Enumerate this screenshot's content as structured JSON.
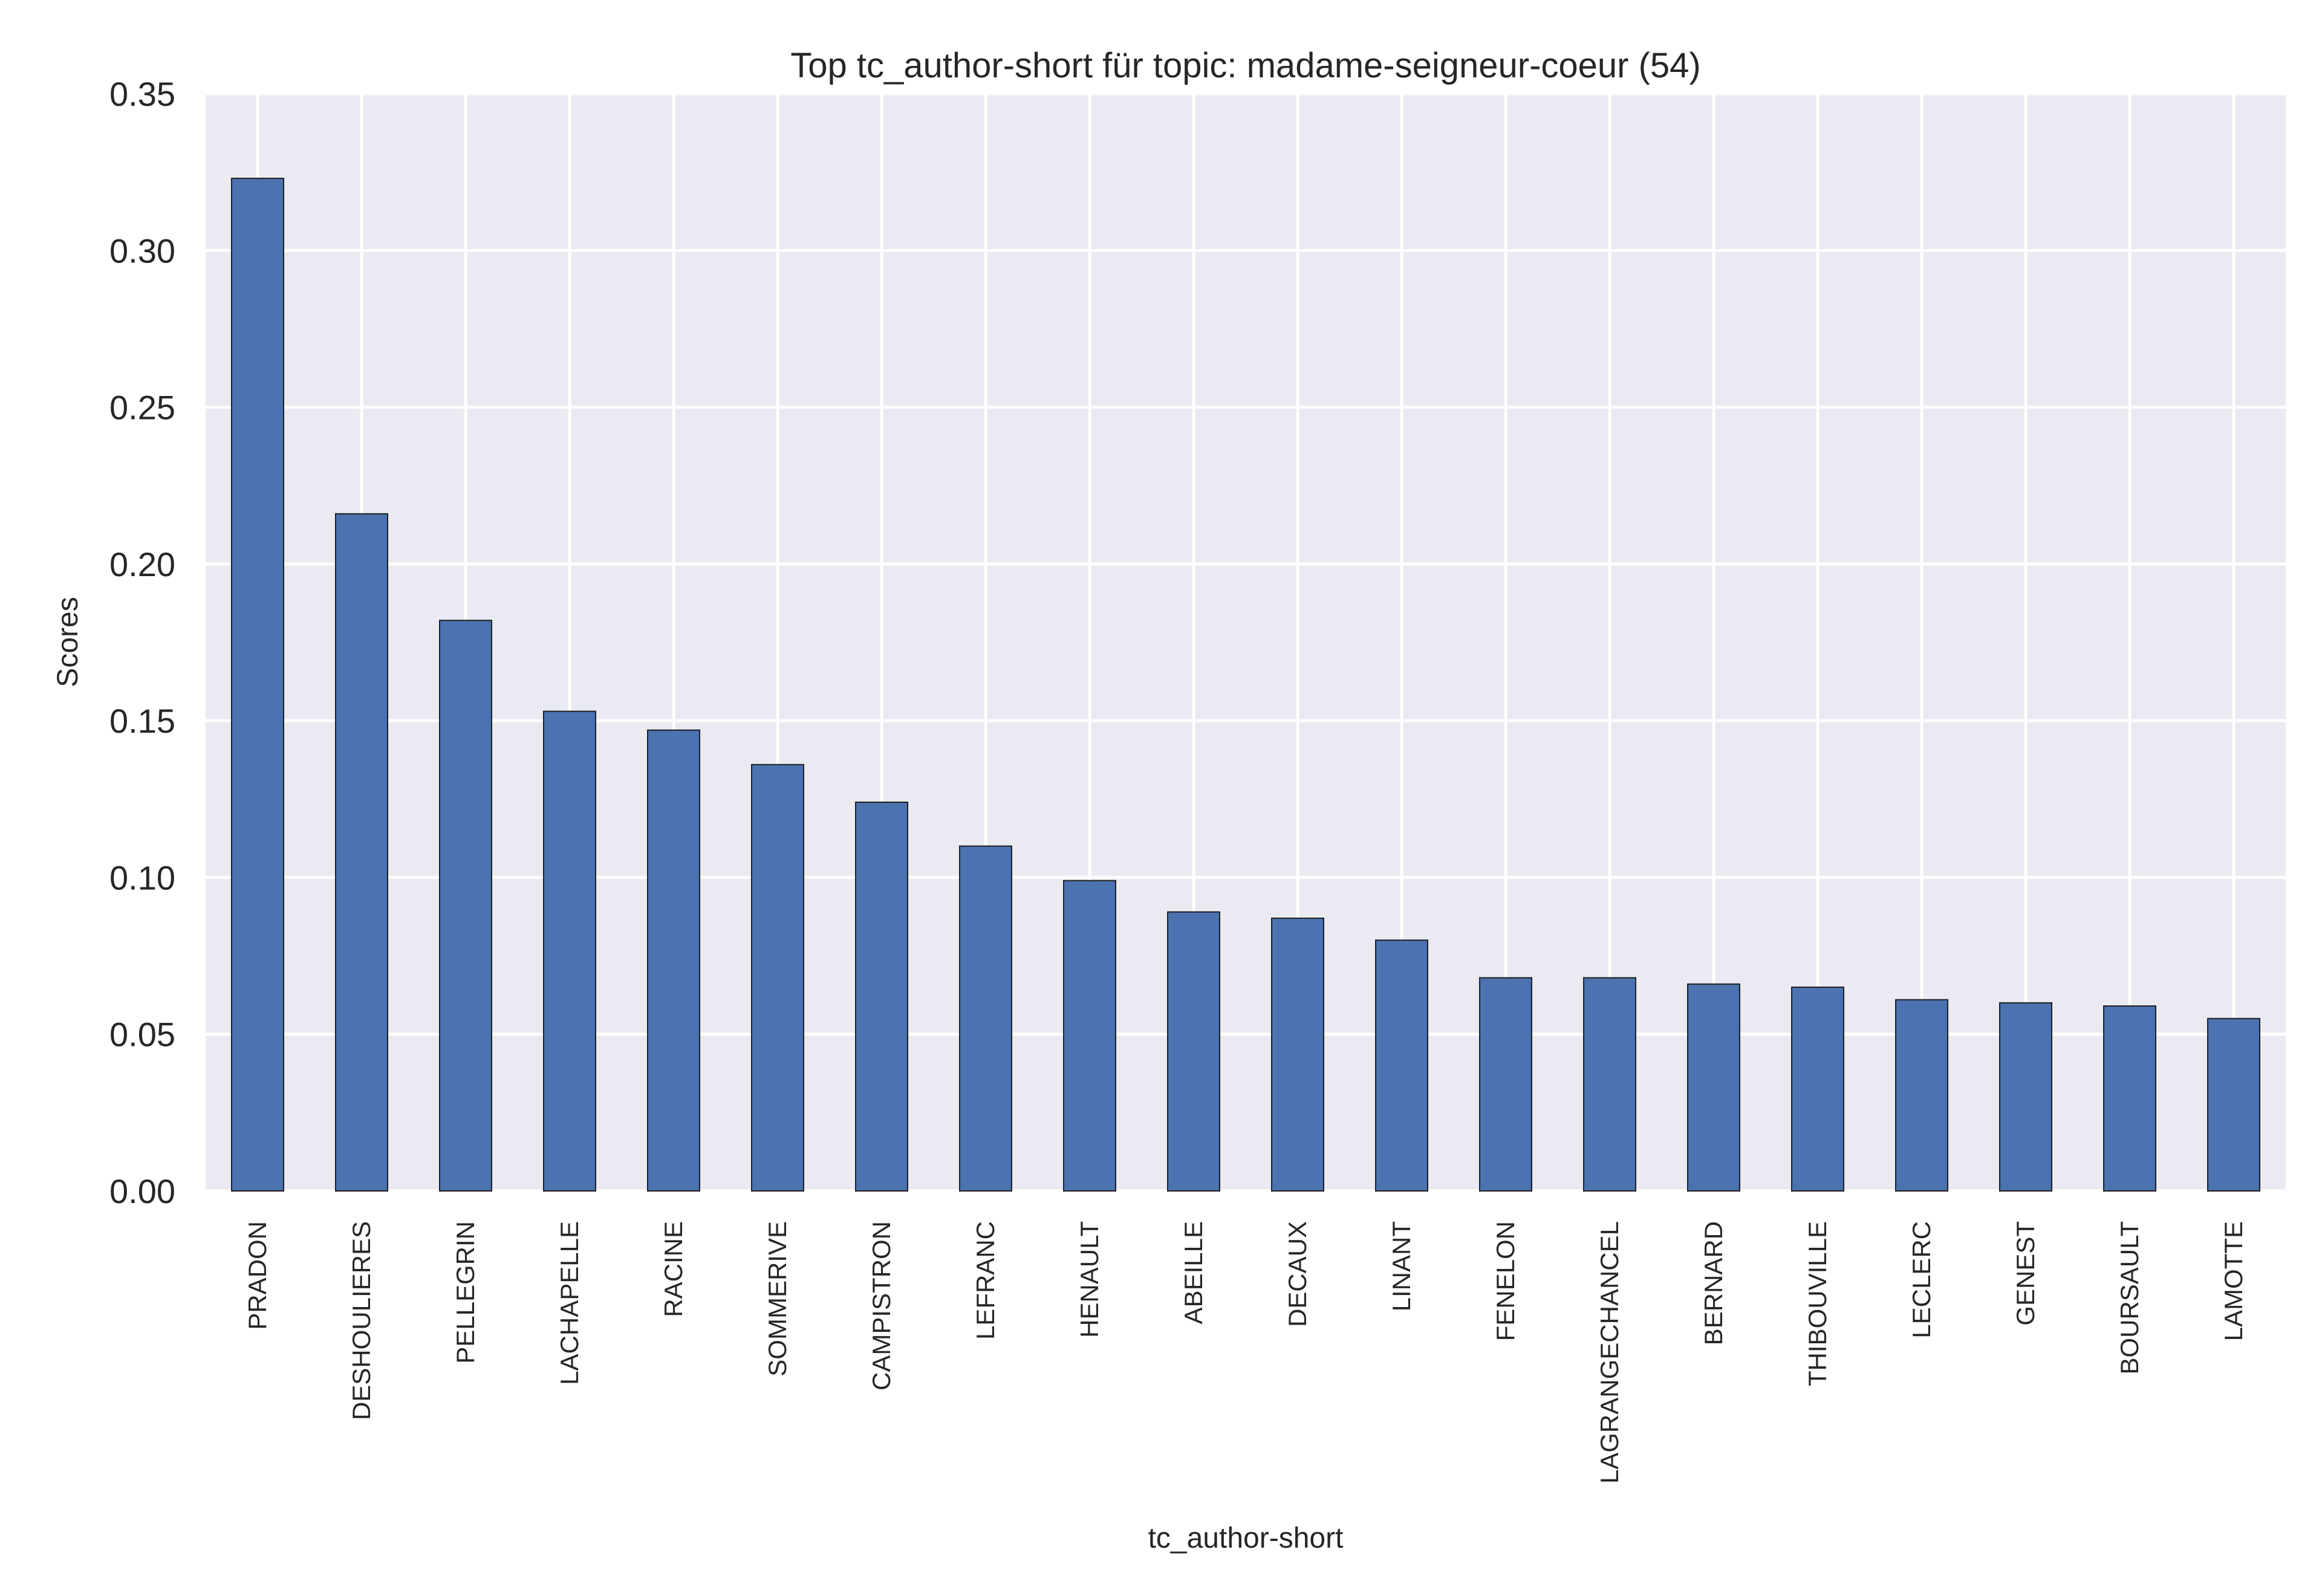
{
  "chart_data": {
    "type": "bar",
    "title": "Top tc_author-short für topic: madame-seigneur-coeur (54)",
    "xlabel": "tc_author-short",
    "ylabel": "Scores",
    "ylim": [
      0,
      0.35
    ],
    "yticks": [
      "0.00",
      "0.05",
      "0.10",
      "0.15",
      "0.20",
      "0.25",
      "0.30",
      "0.35"
    ],
    "grid": true,
    "legend": "none",
    "colors": {
      "bar": "#4c72b0",
      "background": "#eaeaf2",
      "grid": "#ffffff"
    },
    "categories": [
      "PRADON",
      "DESHOULIERES",
      "PELLEGRIN",
      "LACHAPELLE",
      "RACINE",
      "SOMMERIVE",
      "CAMPISTRON",
      "LEFRANC",
      "HENAULT",
      "ABEILLE",
      "DECAUX",
      "LINANT",
      "FENELON",
      "LAGRANGECHANCEL",
      "BERNARD",
      "THIBOUVILLE",
      "LECLERC",
      "GENEST",
      "BOURSAULT",
      "LAMOTTE"
    ],
    "values": [
      0.323,
      0.216,
      0.182,
      0.153,
      0.147,
      0.136,
      0.124,
      0.11,
      0.099,
      0.089,
      0.087,
      0.08,
      0.068,
      0.068,
      0.066,
      0.065,
      0.061,
      0.06,
      0.059,
      0.055
    ]
  }
}
